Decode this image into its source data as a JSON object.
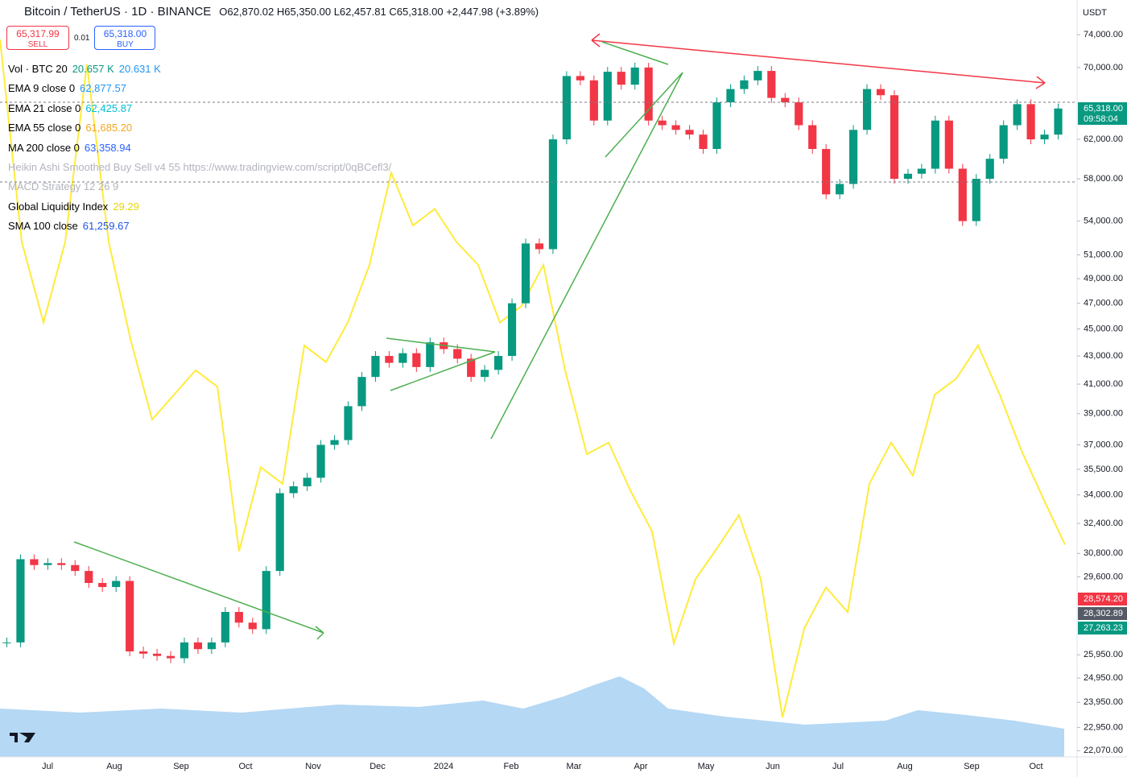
{
  "header": {
    "symbol": "Bitcoin / TetherUS · 1D · BINANCE",
    "ohlc": "O62,870.02 H65,350.00 L62,457.81 C65,318.00 +2,447.98 (+3.89%)"
  },
  "trade": {
    "sell_price": "65,317.99",
    "sell": "SELL",
    "spread": "0.01",
    "buy_price": "65,318.00",
    "buy": "BUY"
  },
  "indicators": [
    {
      "name": "Vol · BTC 20",
      "values": [
        "20.657 K",
        "20.631 K"
      ],
      "colors": [
        "#089981",
        "#2196f3"
      ]
    },
    {
      "name": "EMA 9 close 0",
      "values": [
        "62,877.57"
      ],
      "colors": [
        "#2196f3"
      ]
    },
    {
      "name": "EMA 21 close 0",
      "values": [
        "62,425.87"
      ],
      "colors": [
        "#00bcd4"
      ]
    },
    {
      "name": "EMA 55 close 0",
      "values": [
        "61,685.20"
      ],
      "colors": [
        "#f5a623"
      ]
    },
    {
      "name": "MA 200 close 0",
      "values": [
        "63,358.94"
      ],
      "colors": [
        "#2962ff"
      ]
    },
    {
      "name": "Heikin Ashi Smoothed Buy Sell v4 55 https://www.tradingview.com/script/0qBCefl3/",
      "values": [],
      "colors": [],
      "muted": true
    },
    {
      "name": "MACD Strategy 12 26 9",
      "values": [],
      "colors": [],
      "muted": true
    },
    {
      "name": "Global Liquidity Index",
      "values": [
        "29.29"
      ],
      "colors": [
        "#e6d600"
      ]
    },
    {
      "name": "SMA 100 close",
      "values": [
        "61,259.67"
      ],
      "colors": [
        "#1e53e5"
      ]
    }
  ],
  "price_axis": {
    "currency": "USDT",
    "last_price": "65,318.00",
    "countdown": "09:58:04",
    "tags": [
      {
        "text": "28,574.20",
        "color": "#f23645"
      },
      {
        "text": "28,302.89",
        "color": "#555b66"
      },
      {
        "text": "27,263.23",
        "color": "#089981"
      }
    ]
  },
  "time_axis": [
    "Jul",
    "Aug",
    "Sep",
    "Oct",
    "Nov",
    "Dec",
    "2024",
    "Feb",
    "Mar",
    "Apr",
    "May",
    "Jun",
    "Jul",
    "Aug",
    "Sep",
    "Oct"
  ],
  "chart_data": {
    "type": "candlestick",
    "log_scale": true,
    "up_color": "#089981",
    "down_color": "#f23645",
    "values": [
      26500,
      30500,
      30200,
      30300,
      30200,
      29900,
      29300,
      29100,
      29400,
      26100,
      26000,
      25900,
      25800,
      26500,
      26200,
      26500,
      27900,
      27400,
      27100,
      29900,
      34100,
      34500,
      35000,
      37000,
      37300,
      39500,
      41500,
      43000,
      42500,
      43200,
      42200,
      44000,
      43500,
      42800,
      41500,
      42000,
      43000,
      47000,
      52000,
      51500,
      62000,
      69000,
      68500,
      64000,
      69500,
      68000,
      70000,
      64000,
      63500,
      63000,
      62500,
      61000,
      66000,
      67500,
      68500,
      69600,
      66500,
      66000,
      63500,
      61000,
      56500,
      57500,
      63000,
      67500,
      66800,
      58000,
      58500,
      59000,
      64000,
      59000,
      54000,
      58000,
      60000,
      63500,
      65800,
      62000,
      62500,
      65318
    ],
    "ylim": [
      21840,
      78460
    ],
    "yticks": [
      {
        "value": 74000,
        "label": "74,000.00"
      },
      {
        "value": 70000,
        "label": "70,000.00"
      },
      {
        "value": 62000,
        "label": "62,000.00"
      },
      {
        "value": 58000,
        "label": "58,000.00"
      },
      {
        "value": 54000,
        "label": "54,000.00"
      },
      {
        "value": 51000,
        "label": "51,000.00"
      },
      {
        "value": 49000,
        "label": "49,000.00"
      },
      {
        "value": 47000,
        "label": "47,000.00"
      },
      {
        "value": 45000,
        "label": "45,000.00"
      },
      {
        "value": 43000,
        "label": "43,000.00"
      },
      {
        "value": 41000,
        "label": "41,000.00"
      },
      {
        "value": 39000,
        "label": "39,000.00"
      },
      {
        "value": 37000,
        "label": "37,000.00"
      },
      {
        "value": 35500,
        "label": "35,500.00"
      },
      {
        "value": 34000,
        "label": "34,000.00"
      },
      {
        "value": 32400,
        "label": "32,400.00"
      },
      {
        "value": 30800,
        "label": "30,800.00"
      },
      {
        "value": 29600,
        "label": "29,600.00"
      },
      {
        "value": 25950,
        "label": "25,950.00"
      },
      {
        "value": 24950,
        "label": "24,950.00"
      },
      {
        "value": 23950,
        "label": "23,950.00"
      },
      {
        "value": 22950,
        "label": "22,950.00"
      },
      {
        "value": 22070,
        "label": "22,070.00"
      }
    ],
    "overlay": {
      "name": "Global Liquidity Index",
      "color": "#ffeb3b",
      "ylim": [
        28,
        32.6
      ],
      "values": [
        32.36,
        31.13,
        30.64,
        31.13,
        32.21,
        31.13,
        30.54,
        30.05,
        30.2,
        30.35,
        30.25,
        29.25,
        29.76,
        29.66,
        30.5,
        30.4,
        30.64,
        30.99,
        31.55,
        31.23,
        31.33,
        31.13,
        30.99,
        30.64,
        30.74,
        30.99,
        30.35,
        29.84,
        29.91,
        29.62,
        29.37,
        28.69,
        29.08,
        29.27,
        29.47,
        29.08,
        28.24,
        28.78,
        29.03,
        28.88,
        29.66,
        29.91,
        29.71,
        30.2,
        30.3,
        30.5,
        30.2,
        29.86,
        29.57,
        29.29
      ]
    }
  }
}
